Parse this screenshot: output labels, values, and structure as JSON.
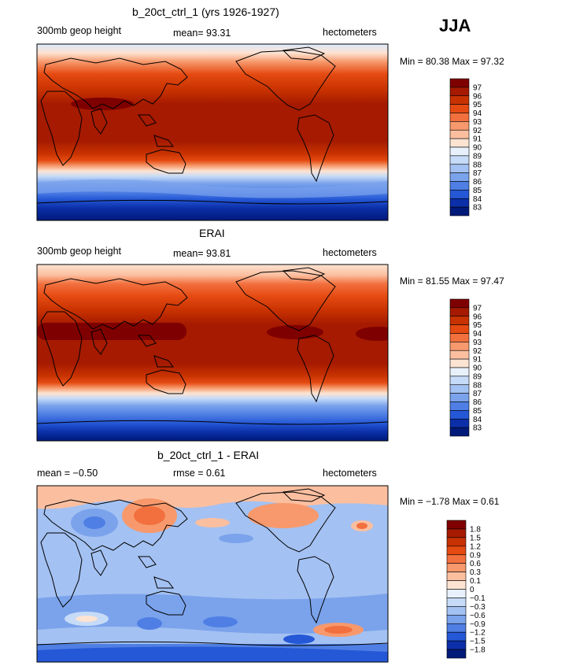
{
  "season": "JJA",
  "panels": [
    {
      "title": "b_20ct_ctrl_1 (yrs 1926-1927)",
      "left_label": "300mb geop height",
      "center_label": "mean=  93.31",
      "right_label": "hectometers",
      "minmax": "Min =   80.38  Max =   97.32",
      "colorbar_labels": [
        "97",
        "96",
        "95",
        "94",
        "93",
        "92",
        "91",
        "90",
        "89",
        "88",
        "87",
        "86",
        "85",
        "84",
        "83"
      ]
    },
    {
      "title": "ERAI",
      "left_label": "300mb geop height",
      "center_label": "mean=  93.81",
      "right_label": "hectometers",
      "minmax": "Min =   81.55  Max =   97.47",
      "colorbar_labels": [
        "97",
        "96",
        "95",
        "94",
        "93",
        "92",
        "91",
        "90",
        "89",
        "88",
        "87",
        "86",
        "85",
        "84",
        "83"
      ]
    },
    {
      "title": "b_20ct_ctrl_1 - ERAI",
      "left_label": "mean =   −0.50",
      "center_label": "rmse =    0.61",
      "right_label": "hectometers",
      "minmax": "Min =  −1.78  Max =    0.61",
      "colorbar_labels": [
        "1.8",
        "1.5",
        "1.2",
        "0.9",
        "0.6",
        "0.3",
        "0.1",
        "0",
        "−0.1",
        "−0.3",
        "−0.6",
        "−0.9",
        "−1.2",
        "−1.5",
        "−1.8"
      ]
    }
  ],
  "colors": [
    "#7f0000",
    "#a51a00",
    "#c83200",
    "#e54a12",
    "#f2703e",
    "#f7996c",
    "#fbbfa0",
    "#fde3d2",
    "#e8f1fb",
    "#c6dbf7",
    "#a3c1f2",
    "#7ba3ec",
    "#4f7fe4",
    "#2558d6",
    "#0b2fa8",
    "#001a7a"
  ]
}
